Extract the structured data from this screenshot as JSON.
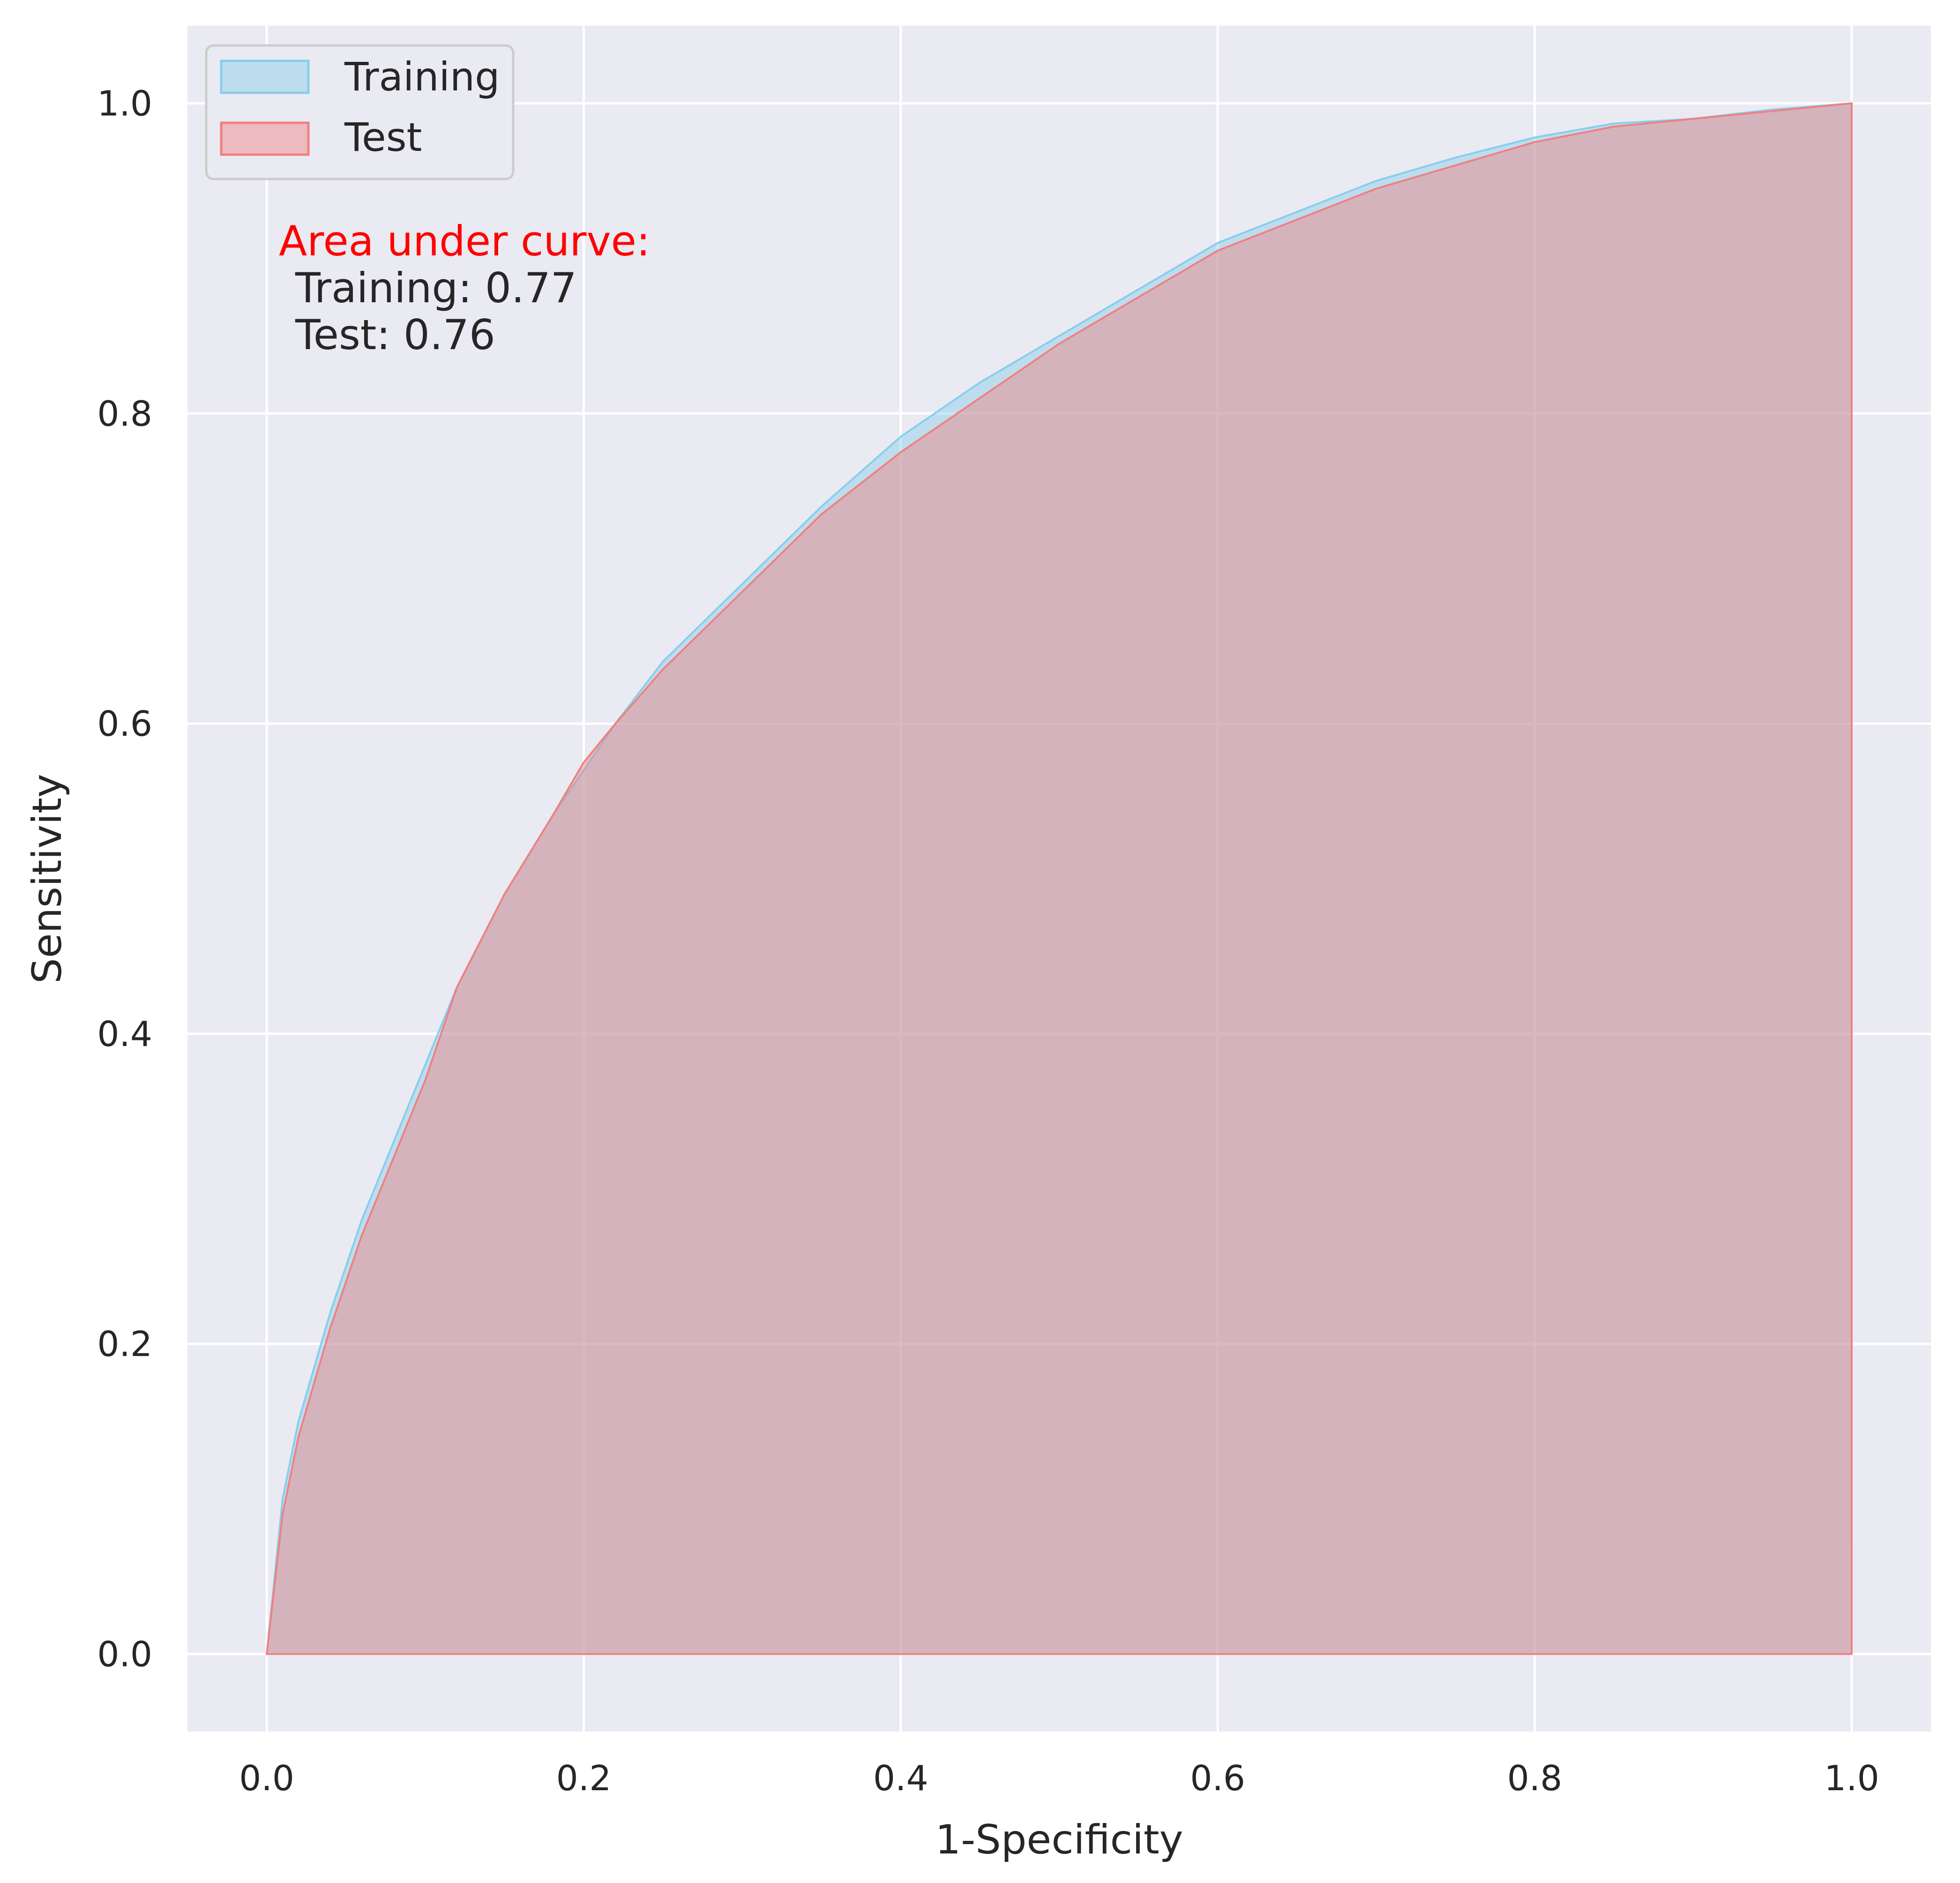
{
  "chart_data": {
    "type": "area",
    "xlabel": "1-Specificity",
    "ylabel": "Sensitivity",
    "xlim": [
      -0.05,
      1.05
    ],
    "ylim": [
      -0.05,
      1.05
    ],
    "xticks": [
      "0.0",
      "0.2",
      "0.4",
      "0.6",
      "0.8",
      "1.0"
    ],
    "yticks": [
      "0.0",
      "0.2",
      "0.4",
      "0.6",
      "0.8",
      "1.0"
    ],
    "grid": true,
    "legend_position": "top-left",
    "series": [
      {
        "name": "Training",
        "color": "#87CEEB",
        "x": [
          0.0,
          0.01,
          0.02,
          0.04,
          0.06,
          0.08,
          0.1,
          0.12,
          0.15,
          0.18,
          0.2,
          0.22,
          0.25,
          0.3,
          0.35,
          0.4,
          0.45,
          0.5,
          0.55,
          0.6,
          0.65,
          0.7,
          0.75,
          0.8,
          0.85,
          0.9,
          0.95,
          1.0
        ],
        "y": [
          0.0,
          0.1,
          0.15,
          0.22,
          0.28,
          0.33,
          0.38,
          0.43,
          0.49,
          0.54,
          0.57,
          0.6,
          0.64,
          0.69,
          0.74,
          0.785,
          0.82,
          0.85,
          0.88,
          0.91,
          0.93,
          0.95,
          0.965,
          0.978,
          0.987,
          0.99,
          0.996,
          1.0
        ]
      },
      {
        "name": "Test",
        "color": "#F08080",
        "x": [
          0.0,
          0.01,
          0.02,
          0.04,
          0.06,
          0.08,
          0.1,
          0.12,
          0.15,
          0.18,
          0.2,
          0.22,
          0.25,
          0.3,
          0.35,
          0.4,
          0.45,
          0.5,
          0.55,
          0.6,
          0.65,
          0.7,
          0.75,
          0.8,
          0.85,
          0.9,
          0.95,
          1.0
        ],
        "y": [
          0.0,
          0.09,
          0.14,
          0.21,
          0.27,
          0.32,
          0.37,
          0.43,
          0.49,
          0.54,
          0.575,
          0.6,
          0.635,
          0.685,
          0.735,
          0.775,
          0.81,
          0.845,
          0.875,
          0.905,
          0.925,
          0.945,
          0.96,
          0.975,
          0.985,
          0.99,
          0.995,
          1.0
        ]
      }
    ],
    "annotation": {
      "heading": "Area under curve:",
      "heading_color": "#FF0000",
      "line1": "Training: 0.77",
      "line2": "Test: 0.76"
    }
  }
}
